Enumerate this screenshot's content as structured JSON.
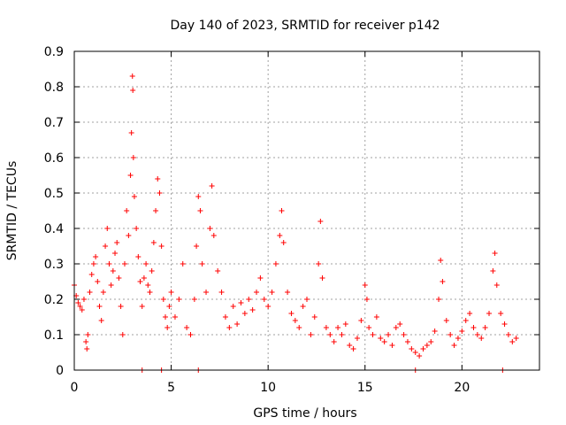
{
  "chart_data": {
    "type": "scatter",
    "title": "Day 140 of 2023, SRMTID for receiver p142",
    "xlabel": "GPS time / hours",
    "ylabel": "SRMTID / TECUs",
    "xlim": [
      0,
      24
    ],
    "ylim": [
      0,
      0.9
    ],
    "xticks": [
      0,
      5,
      10,
      15,
      20
    ],
    "yticks": [
      0,
      0.1,
      0.2,
      0.3,
      0.4,
      0.5,
      0.6,
      0.7,
      0.8,
      0.9
    ],
    "xtick_labels": [
      "0",
      "5",
      "10",
      "15",
      "20"
    ],
    "ytick_labels": [
      "0",
      "0.1",
      "0.2",
      "0.3",
      "0.4",
      "0.5",
      "0.6",
      "0.7",
      "0.8",
      "0.9"
    ],
    "grid": true,
    "marker": "plus",
    "color": "#ff0000",
    "series": [
      {
        "name": "SRMTID p142",
        "points": [
          [
            0.0,
            0.24
          ],
          [
            0.1,
            0.21
          ],
          [
            0.2,
            0.19
          ],
          [
            0.3,
            0.18
          ],
          [
            0.4,
            0.17
          ],
          [
            0.5,
            0.2
          ],
          [
            0.6,
            0.08
          ],
          [
            0.65,
            0.06
          ],
          [
            0.7,
            0.1
          ],
          [
            0.8,
            0.22
          ],
          [
            0.9,
            0.27
          ],
          [
            1.0,
            0.3
          ],
          [
            1.1,
            0.32
          ],
          [
            1.2,
            0.25
          ],
          [
            1.3,
            0.18
          ],
          [
            1.4,
            0.14
          ],
          [
            1.5,
            0.22
          ],
          [
            1.6,
            0.35
          ],
          [
            1.7,
            0.4
          ],
          [
            1.8,
            0.3
          ],
          [
            1.9,
            0.24
          ],
          [
            2.0,
            0.28
          ],
          [
            2.1,
            0.33
          ],
          [
            2.2,
            0.36
          ],
          [
            2.3,
            0.26
          ],
          [
            2.4,
            0.18
          ],
          [
            2.5,
            0.1
          ],
          [
            2.6,
            0.3
          ],
          [
            2.7,
            0.45
          ],
          [
            2.8,
            0.38
          ],
          [
            2.9,
            0.55
          ],
          [
            2.95,
            0.67
          ],
          [
            3.0,
            0.83
          ],
          [
            3.02,
            0.79
          ],
          [
            3.05,
            0.6
          ],
          [
            3.1,
            0.49
          ],
          [
            3.2,
            0.4
          ],
          [
            3.3,
            0.32
          ],
          [
            3.4,
            0.25
          ],
          [
            3.5,
            0.18
          ],
          [
            3.6,
            0.26
          ],
          [
            3.7,
            0.3
          ],
          [
            3.8,
            0.24
          ],
          [
            3.9,
            0.22
          ],
          [
            4.0,
            0.28
          ],
          [
            4.1,
            0.36
          ],
          [
            4.2,
            0.45
          ],
          [
            4.3,
            0.54
          ],
          [
            4.4,
            0.5
          ],
          [
            4.5,
            0.35
          ],
          [
            4.6,
            0.2
          ],
          [
            4.7,
            0.15
          ],
          [
            4.8,
            0.12
          ],
          [
            4.9,
            0.18
          ],
          [
            5.0,
            0.22
          ],
          [
            5.2,
            0.15
          ],
          [
            5.4,
            0.2
          ],
          [
            5.6,
            0.3
          ],
          [
            5.8,
            0.12
          ],
          [
            6.0,
            0.1
          ],
          [
            6.2,
            0.2
          ],
          [
            6.3,
            0.35
          ],
          [
            6.4,
            0.49
          ],
          [
            6.5,
            0.45
          ],
          [
            6.6,
            0.3
          ],
          [
            6.8,
            0.22
          ],
          [
            7.0,
            0.4
          ],
          [
            7.1,
            0.52
          ],
          [
            7.2,
            0.38
          ],
          [
            7.4,
            0.28
          ],
          [
            7.6,
            0.22
          ],
          [
            7.8,
            0.15
          ],
          [
            8.0,
            0.12
          ],
          [
            8.2,
            0.18
          ],
          [
            8.4,
            0.13
          ],
          [
            8.6,
            0.19
          ],
          [
            8.8,
            0.16
          ],
          [
            9.0,
            0.2
          ],
          [
            9.2,
            0.17
          ],
          [
            9.4,
            0.22
          ],
          [
            9.6,
            0.26
          ],
          [
            9.8,
            0.2
          ],
          [
            10.0,
            0.18
          ],
          [
            10.2,
            0.22
          ],
          [
            10.4,
            0.3
          ],
          [
            10.6,
            0.38
          ],
          [
            10.7,
            0.45
          ],
          [
            10.8,
            0.36
          ],
          [
            11.0,
            0.22
          ],
          [
            11.2,
            0.16
          ],
          [
            11.4,
            0.14
          ],
          [
            11.6,
            0.12
          ],
          [
            11.8,
            0.18
          ],
          [
            12.0,
            0.2
          ],
          [
            12.2,
            0.1
          ],
          [
            12.4,
            0.15
          ],
          [
            12.6,
            0.3
          ],
          [
            12.7,
            0.42
          ],
          [
            12.8,
            0.26
          ],
          [
            13.0,
            0.12
          ],
          [
            13.2,
            0.1
          ],
          [
            13.4,
            0.08
          ],
          [
            13.6,
            0.12
          ],
          [
            13.8,
            0.1
          ],
          [
            14.0,
            0.13
          ],
          [
            14.2,
            0.07
          ],
          [
            14.4,
            0.06
          ],
          [
            14.6,
            0.09
          ],
          [
            14.8,
            0.14
          ],
          [
            15.0,
            0.24
          ],
          [
            15.1,
            0.2
          ],
          [
            15.2,
            0.12
          ],
          [
            15.4,
            0.1
          ],
          [
            15.6,
            0.15
          ],
          [
            15.8,
            0.09
          ],
          [
            16.0,
            0.08
          ],
          [
            16.2,
            0.1
          ],
          [
            16.4,
            0.07
          ],
          [
            16.6,
            0.12
          ],
          [
            16.8,
            0.13
          ],
          [
            17.0,
            0.1
          ],
          [
            17.2,
            0.08
          ],
          [
            17.4,
            0.06
          ],
          [
            17.6,
            0.05
          ],
          [
            17.8,
            0.04
          ],
          [
            18.0,
            0.06
          ],
          [
            18.2,
            0.07
          ],
          [
            18.4,
            0.08
          ],
          [
            18.6,
            0.11
          ],
          [
            18.8,
            0.2
          ],
          [
            18.9,
            0.31
          ],
          [
            19.0,
            0.25
          ],
          [
            19.2,
            0.14
          ],
          [
            19.4,
            0.1
          ],
          [
            19.6,
            0.07
          ],
          [
            19.8,
            0.09
          ],
          [
            20.0,
            0.11
          ],
          [
            20.2,
            0.14
          ],
          [
            20.4,
            0.16
          ],
          [
            20.6,
            0.12
          ],
          [
            20.8,
            0.1
          ],
          [
            21.0,
            0.09
          ],
          [
            21.2,
            0.12
          ],
          [
            21.4,
            0.16
          ],
          [
            21.6,
            0.28
          ],
          [
            21.7,
            0.33
          ],
          [
            21.8,
            0.24
          ],
          [
            22.0,
            0.16
          ],
          [
            22.2,
            0.13
          ],
          [
            22.4,
            0.1
          ],
          [
            22.6,
            0.08
          ],
          [
            22.8,
            0.09
          ],
          [
            3.5,
            0.0
          ],
          [
            4.5,
            0.0
          ],
          [
            6.4,
            0.0
          ],
          [
            17.6,
            0.0
          ],
          [
            22.1,
            0.0
          ]
        ]
      }
    ]
  }
}
